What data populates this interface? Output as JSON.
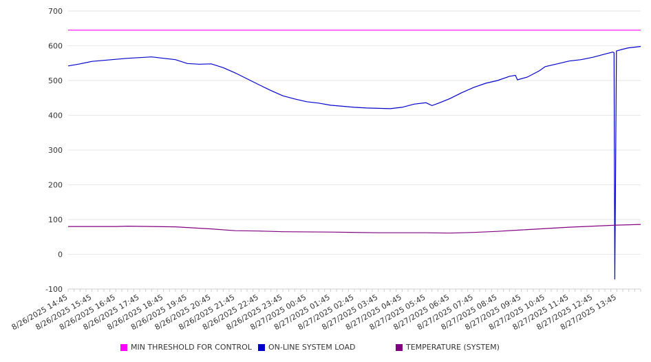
{
  "chart_data": {
    "type": "line",
    "title": "",
    "xlabel": "",
    "ylabel": "",
    "ylim": [
      -100,
      700
    ],
    "y_ticks": [
      -100,
      0,
      100,
      200,
      300,
      400,
      500,
      600,
      700
    ],
    "x_tick_labels": [
      "8/26/2025 14:45",
      "8/26/2025 15:45",
      "8/26/2025 16:45",
      "8/26/2025 17:45",
      "8/26/2025 18:45",
      "8/26/2025 19:45",
      "8/26/2025 20:45",
      "8/26/2025 21:45",
      "8/26/2025 22:45",
      "8/26/2025 23:45",
      "8/27/2025 00:45",
      "8/27/2025 01:45",
      "8/27/2025 02:45",
      "8/27/2025 03:45",
      "8/27/2025 04:45",
      "8/27/2025 05:45",
      "8/27/2025 06:45",
      "8/27/2025 07:45",
      "8/27/2025 08:45",
      "8/27/2025 09:45",
      "8/27/2025 10:45",
      "8/27/2025 11:45",
      "8/27/2025 12:45",
      "8/27/2025 13:45"
    ],
    "x_start": "8/26/2025 14:45",
    "x_end": "8/27/2025 14:45",
    "grid": true,
    "legend_position": "bottom",
    "series": [
      {
        "name": "MIN THRESHOLD FOR CONTROL",
        "color": "#ff00ff",
        "points": [
          [
            "8/26/2025 14:45",
            645
          ],
          [
            "8/27/2025 14:45",
            645
          ]
        ]
      },
      {
        "name": "ON-LINE SYSTEM LOAD",
        "color": "#0000cc",
        "points": [
          [
            "8/26/2025 14:45",
            542
          ],
          [
            "8/26/2025 15:15",
            548
          ],
          [
            "8/26/2025 15:45",
            555
          ],
          [
            "8/26/2025 16:15",
            558
          ],
          [
            "8/26/2025 16:45",
            561
          ],
          [
            "8/26/2025 17:15",
            564
          ],
          [
            "8/26/2025 17:45",
            566
          ],
          [
            "8/26/2025 18:15",
            568
          ],
          [
            "8/26/2025 18:45",
            564
          ],
          [
            "8/26/2025 19:15",
            560
          ],
          [
            "8/26/2025 19:45",
            549
          ],
          [
            "8/26/2025 20:15",
            547
          ],
          [
            "8/26/2025 20:45",
            548
          ],
          [
            "8/26/2025 21:15",
            537
          ],
          [
            "8/26/2025 21:45",
            522
          ],
          [
            "8/26/2025 22:15",
            505
          ],
          [
            "8/26/2025 22:45",
            488
          ],
          [
            "8/26/2025 23:15",
            471
          ],
          [
            "8/26/2025 23:45",
            456
          ],
          [
            "8/27/2025 00:15",
            447
          ],
          [
            "8/27/2025 00:45",
            439
          ],
          [
            "8/27/2025 01:15",
            435
          ],
          [
            "8/27/2025 01:45",
            429
          ],
          [
            "8/27/2025 02:15",
            426
          ],
          [
            "8/27/2025 02:45",
            423
          ],
          [
            "8/27/2025 03:15",
            421
          ],
          [
            "8/27/2025 03:45",
            420
          ],
          [
            "8/27/2025 04:15",
            419
          ],
          [
            "8/27/2025 04:45",
            423
          ],
          [
            "8/27/2025 05:15",
            432
          ],
          [
            "8/27/2025 05:45",
            436
          ],
          [
            "8/27/2025 06:00",
            428
          ],
          [
            "8/27/2025 06:15",
            434
          ],
          [
            "8/27/2025 06:45",
            448
          ],
          [
            "8/27/2025 07:15",
            465
          ],
          [
            "8/27/2025 07:45",
            480
          ],
          [
            "8/27/2025 08:15",
            492
          ],
          [
            "8/27/2025 08:45",
            500
          ],
          [
            "8/27/2025 09:15",
            512
          ],
          [
            "8/27/2025 09:30",
            515
          ],
          [
            "8/27/2025 09:35",
            502
          ],
          [
            "8/27/2025 10:00",
            510
          ],
          [
            "8/27/2025 10:30",
            528
          ],
          [
            "8/27/2025 10:45",
            540
          ],
          [
            "8/27/2025 11:15",
            548
          ],
          [
            "8/27/2025 11:45",
            556
          ],
          [
            "8/27/2025 12:15",
            560
          ],
          [
            "8/27/2025 12:45",
            567
          ],
          [
            "8/27/2025 13:15",
            576
          ],
          [
            "8/27/2025 13:35",
            582
          ],
          [
            "8/27/2025 13:38",
            580
          ],
          [
            "8/27/2025 13:40",
            -72
          ],
          [
            "8/27/2025 13:44",
            585
          ],
          [
            "8/27/2025 14:00",
            590
          ],
          [
            "8/27/2025 14:15",
            594
          ],
          [
            "8/27/2025 14:45",
            598
          ]
        ]
      },
      {
        "name": "TEMPERATURE (SYSTEM)",
        "color": "#800080",
        "points": [
          [
            "8/26/2025 14:45",
            80
          ],
          [
            "8/26/2025 16:45",
            80
          ],
          [
            "8/26/2025 17:15",
            81
          ],
          [
            "8/26/2025 19:15",
            79
          ],
          [
            "8/26/2025 20:45",
            73
          ],
          [
            "8/26/2025 21:45",
            68
          ],
          [
            "8/26/2025 22:45",
            67
          ],
          [
            "8/26/2025 23:45",
            65
          ],
          [
            "8/27/2025 01:45",
            64
          ],
          [
            "8/27/2025 03:45",
            62
          ],
          [
            "8/27/2025 05:45",
            62
          ],
          [
            "8/27/2025 06:45",
            61
          ],
          [
            "8/27/2025 07:45",
            63
          ],
          [
            "8/27/2025 08:45",
            66
          ],
          [
            "8/27/2025 09:45",
            70
          ],
          [
            "8/27/2025 10:45",
            74
          ],
          [
            "8/27/2025 11:45",
            78
          ],
          [
            "8/27/2025 12:45",
            81
          ],
          [
            "8/27/2025 13:45",
            84
          ],
          [
            "8/27/2025 14:45",
            86
          ]
        ]
      }
    ]
  }
}
